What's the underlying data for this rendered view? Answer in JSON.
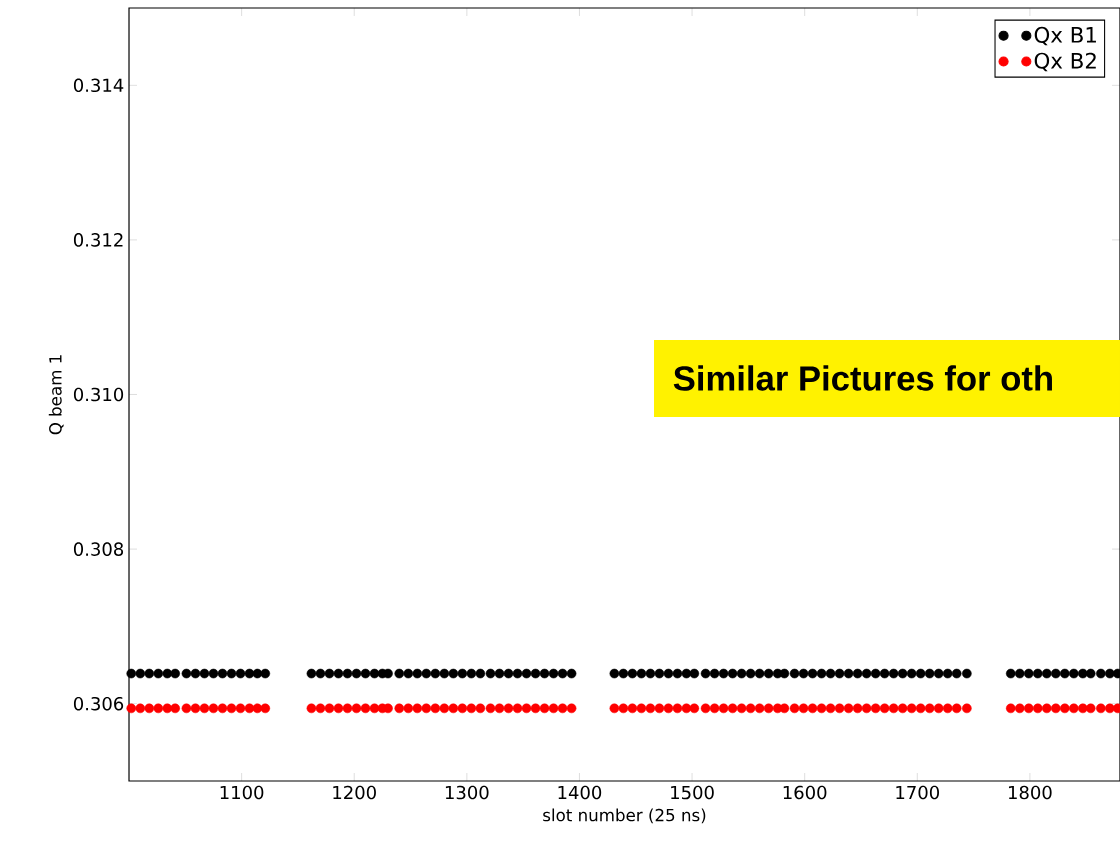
{
  "chart_data": {
    "type": "scatter",
    "xlabel": "slot number (25 ns)",
    "ylabel": "Q beam 1",
    "xlim": [
      1000,
      1880
    ],
    "ylim": [
      0.305,
      0.315
    ],
    "xticks": [
      1100,
      1200,
      1300,
      1400,
      1500,
      1600,
      1700,
      1800
    ],
    "yticks": [
      0.306,
      0.308,
      {
        "value": 0.31,
        "label": "0.310"
      },
      0.312,
      0.314
    ],
    "marker": "circle",
    "legend": "top right",
    "annotations": [
      "Similar Pictures for oth"
    ],
    "x": [
      1002,
      1010,
      1018,
      1026,
      1034,
      1041,
      1051,
      1059,
      1067,
      1075,
      1083,
      1091,
      1099,
      1107,
      1114,
      1121,
      1162,
      1170,
      1178,
      1186,
      1194,
      1202,
      1210,
      1218,
      1225,
      1230,
      1240,
      1248,
      1256,
      1264,
      1272,
      1280,
      1288,
      1296,
      1304,
      1312,
      1321,
      1329,
      1337,
      1345,
      1353,
      1361,
      1369,
      1377,
      1385,
      1393,
      1431,
      1439,
      1447,
      1455,
      1463,
      1471,
      1479,
      1487,
      1495,
      1502,
      1512,
      1520,
      1528,
      1536,
      1544,
      1552,
      1560,
      1568,
      1576,
      1582,
      1591,
      1599,
      1607,
      1615,
      1623,
      1631,
      1639,
      1647,
      1655,
      1663,
      1671,
      1679,
      1687,
      1695,
      1703,
      1711,
      1719,
      1727,
      1735,
      1744,
      1783,
      1791,
      1799,
      1807,
      1815,
      1823,
      1831,
      1839,
      1847,
      1854,
      1863,
      1871,
      1878
    ],
    "series": [
      {
        "name": "Qx B1",
        "color": "#000000",
        "values": [
          0.30639,
          0.30639,
          0.30639,
          0.30639,
          0.30639,
          0.30639,
          0.30639,
          0.30639,
          0.30639,
          0.30639,
          0.30639,
          0.30639,
          0.30639,
          0.30639,
          0.30639,
          0.30639,
          0.30639,
          0.30639,
          0.30639,
          0.30639,
          0.30639,
          0.30639,
          0.30639,
          0.30639,
          0.30639,
          0.30639,
          0.30639,
          0.30639,
          0.30639,
          0.30639,
          0.30639,
          0.30639,
          0.30639,
          0.30639,
          0.30639,
          0.30639,
          0.30639,
          0.30639,
          0.30639,
          0.30639,
          0.30639,
          0.30639,
          0.30639,
          0.30639,
          0.30639,
          0.30639,
          0.30639,
          0.30639,
          0.30639,
          0.30639,
          0.30639,
          0.30639,
          0.30639,
          0.30639,
          0.30639,
          0.30639,
          0.30639,
          0.30639,
          0.30639,
          0.30639,
          0.30639,
          0.30639,
          0.30639,
          0.30639,
          0.30639,
          0.30639,
          0.30639,
          0.30639,
          0.30639,
          0.30639,
          0.30639,
          0.30639,
          0.30639,
          0.30639,
          0.30639,
          0.30639,
          0.30639,
          0.30639,
          0.30639,
          0.30639,
          0.30639,
          0.30639,
          0.30639,
          0.30639,
          0.30639,
          0.30639,
          0.30639,
          0.30639,
          0.30639,
          0.30639,
          0.30639,
          0.30639,
          0.30639,
          0.30639,
          0.30639,
          0.30639,
          0.30639,
          0.30639,
          0.30639
        ]
      },
      {
        "name": "Qx B2",
        "color": "#ff0000",
        "values": [
          0.30594,
          0.30594,
          0.30594,
          0.30594,
          0.30594,
          0.30594,
          0.30594,
          0.30594,
          0.30594,
          0.30594,
          0.30594,
          0.30594,
          0.30594,
          0.30594,
          0.30594,
          0.30594,
          0.30594,
          0.30594,
          0.30594,
          0.30594,
          0.30594,
          0.30594,
          0.30594,
          0.30594,
          0.30594,
          0.30594,
          0.30594,
          0.30594,
          0.30594,
          0.30594,
          0.30594,
          0.30594,
          0.30594,
          0.30594,
          0.30594,
          0.30594,
          0.30594,
          0.30594,
          0.30594,
          0.30594,
          0.30594,
          0.30594,
          0.30594,
          0.30594,
          0.30594,
          0.30594,
          0.30594,
          0.30594,
          0.30594,
          0.30594,
          0.30594,
          0.30594,
          0.30594,
          0.30594,
          0.30594,
          0.30594,
          0.30594,
          0.30594,
          0.30594,
          0.30594,
          0.30594,
          0.30594,
          0.30594,
          0.30594,
          0.30594,
          0.30594,
          0.30594,
          0.30594,
          0.30594,
          0.30594,
          0.30594,
          0.30594,
          0.30594,
          0.30594,
          0.30594,
          0.30594,
          0.30594,
          0.30594,
          0.30594,
          0.30594,
          0.30594,
          0.30594,
          0.30594,
          0.30594,
          0.30594,
          0.30594,
          0.30594,
          0.30594,
          0.30594,
          0.30594,
          0.30594,
          0.30594,
          0.30594,
          0.30594,
          0.30594,
          0.30594,
          0.30594,
          0.30594,
          0.30594
        ]
      }
    ]
  }
}
